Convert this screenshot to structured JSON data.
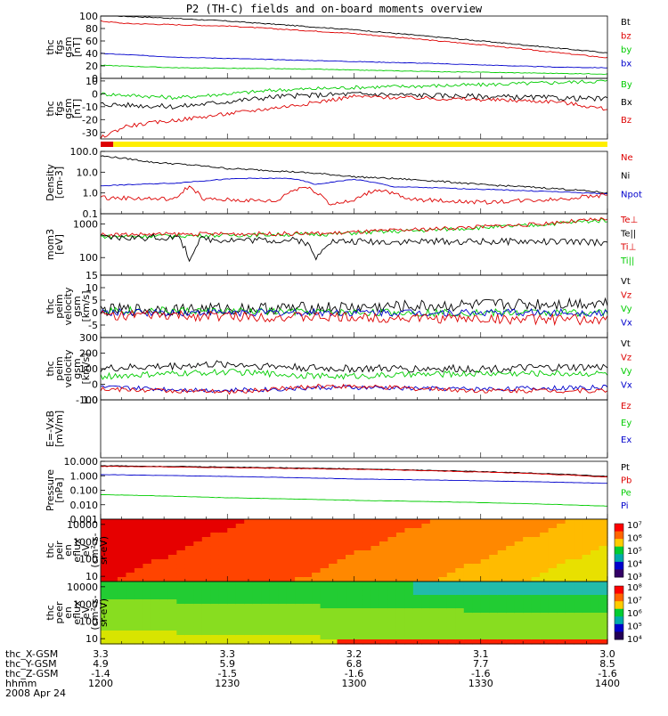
{
  "title": "P2 (TH-C) fields and on-board moments overview",
  "colors": {
    "black": "#000000",
    "red": "#dd0000",
    "green": "#00cc00",
    "blue": "#0000cc",
    "yellow": "#ffee00"
  },
  "quality_bar": {
    "red_until_time": "12:03",
    "red_color": "#dd0000",
    "yellow_color": "#ffee00"
  },
  "time_range": {
    "start": "12:00",
    "end": "14:00"
  },
  "footer": {
    "row_labels": [
      "thc_X-GSM",
      "thc_Y-GSM",
      "thc_Z-GSM",
      "hhmm",
      "2008 Apr 24"
    ],
    "columns": [
      {
        "x": "3.3",
        "y": "4.9",
        "z": "-1.4",
        "hhmm": "1200"
      },
      {
        "x": "3.3",
        "y": "5.9",
        "z": "-1.5",
        "hhmm": "1230"
      },
      {
        "x": "3.2",
        "y": "6.8",
        "z": "-1.6",
        "hhmm": "1300"
      },
      {
        "x": "3.1",
        "y": "7.7",
        "z": "-1.6",
        "hhmm": "1330"
      },
      {
        "x": "3.0",
        "y": "8.5",
        "z": "-1.6",
        "hhmm": "1400"
      }
    ]
  },
  "chart_data": [
    {
      "type": "line",
      "ylabel": [
        "thc",
        "fgs",
        "gsm",
        "[nT]"
      ],
      "ylim": [
        0,
        100
      ],
      "ticks": [
        "100",
        "80",
        "60",
        "40",
        "20",
        "0"
      ],
      "tick_values": [
        100,
        80,
        60,
        40,
        20,
        0
      ],
      "legend": [
        {
          "name": "Bt",
          "color": "#000000"
        },
        {
          "name": "bz",
          "color": "#dd0000"
        },
        {
          "name": "by",
          "color": "#00cc00"
        },
        {
          "name": "bx",
          "color": "#0000cc"
        }
      ],
      "series": [
        {
          "name": "Bt",
          "color": "#000000",
          "noise": 0.8,
          "points": [
            [
              12.0,
              101
            ],
            [
              12.2,
              98
            ],
            [
              12.5,
              92
            ],
            [
              13.0,
              78
            ],
            [
              13.5,
              60
            ],
            [
              14.0,
              41
            ]
          ]
        },
        {
          "name": "bz",
          "color": "#dd0000",
          "noise": 0.8,
          "points": [
            [
              12.0,
              92
            ],
            [
              12.1,
              88
            ],
            [
              12.5,
              84
            ],
            [
              13.0,
              72
            ],
            [
              13.5,
              54
            ],
            [
              14.0,
              33
            ]
          ]
        },
        {
          "name": "bx",
          "color": "#0000cc",
          "noise": 0.5,
          "points": [
            [
              12.0,
              40
            ],
            [
              12.3,
              34
            ],
            [
              12.8,
              29
            ],
            [
              13.3,
              24
            ],
            [
              13.8,
              18
            ],
            [
              14.0,
              17
            ]
          ]
        },
        {
          "name": "by",
          "color": "#00cc00",
          "noise": 0.5,
          "points": [
            [
              12.0,
              21
            ],
            [
              12.3,
              17
            ],
            [
              12.8,
              15
            ],
            [
              13.3,
              11
            ],
            [
              13.8,
              8
            ],
            [
              14.0,
              7
            ]
          ]
        }
      ]
    },
    {
      "type": "line",
      "ylabel": [
        "thc",
        "fgs",
        "gsm",
        "[nT]"
      ],
      "ylim": [
        -35,
        12
      ],
      "ticks": [
        "10",
        "0",
        "-10",
        "-20",
        "-30"
      ],
      "tick_values": [
        10,
        0,
        -10,
        -20,
        -30
      ],
      "legend": [
        {
          "name": "By",
          "color": "#00cc00"
        },
        {
          "name": "Bx",
          "color": "#000000"
        },
        {
          "name": "Bz",
          "color": "#dd0000"
        }
      ],
      "series": [
        {
          "name": "By",
          "color": "#00cc00",
          "noise": 1.5,
          "points": [
            [
              12.0,
              0
            ],
            [
              12.3,
              -3
            ],
            [
              12.7,
              3
            ],
            [
              13.0,
              5
            ],
            [
              13.5,
              7
            ],
            [
              14.0,
              10
            ]
          ]
        },
        {
          "name": "Bx",
          "color": "#000000",
          "noise": 2.0,
          "points": [
            [
              12.0,
              -8
            ],
            [
              12.3,
              -10
            ],
            [
              12.7,
              -2
            ],
            [
              13.0,
              0
            ],
            [
              13.5,
              -2
            ],
            [
              14.0,
              -4
            ]
          ]
        },
        {
          "name": "Bz",
          "color": "#dd0000",
          "noise": 1.5,
          "points": [
            [
              12.0,
              -34
            ],
            [
              12.1,
              -25
            ],
            [
              12.4,
              -18
            ],
            [
              12.8,
              -8
            ],
            [
              13.0,
              -2
            ],
            [
              13.4,
              -4
            ],
            [
              13.8,
              -6
            ],
            [
              14.0,
              -12
            ]
          ]
        }
      ]
    },
    {
      "type": "line",
      "scale": "log",
      "ylabel": [
        "Density",
        "[cm-3]"
      ],
      "ylim": [
        0.1,
        100
      ],
      "ticks": [
        "100.0",
        "10.0",
        "1.0",
        "0.1"
      ],
      "tick_values": [
        100,
        10,
        1,
        0.1
      ],
      "legend": [
        {
          "name": "Ne",
          "color": "#dd0000"
        },
        {
          "name": "Ni",
          "color": "#000000"
        },
        {
          "name": "Npot",
          "color": "#0000cc"
        }
      ],
      "series": [
        {
          "name": "Ni",
          "color": "#000000",
          "noise": 0.02,
          "points": [
            [
              12.0,
              60
            ],
            [
              12.2,
              30
            ],
            [
              12.5,
              15
            ],
            [
              13.0,
              6
            ],
            [
              13.5,
              2.5
            ],
            [
              14.0,
              1.0
            ]
          ]
        },
        {
          "name": "Npot",
          "color": "#0000cc",
          "noise": 0.01,
          "points": [
            [
              12.0,
              2.2
            ],
            [
              12.3,
              3
            ],
            [
              12.55,
              5
            ],
            [
              12.75,
              5
            ],
            [
              12.85,
              2.5
            ],
            [
              13.0,
              4.5
            ],
            [
              13.15,
              2
            ],
            [
              13.5,
              1.5
            ],
            [
              14.0,
              0.9
            ]
          ]
        },
        {
          "name": "Ne",
          "color": "#dd0000",
          "noise": 0.05,
          "points": [
            [
              12.0,
              0.6
            ],
            [
              12.3,
              0.5
            ],
            [
              12.35,
              2
            ],
            [
              12.4,
              0.5
            ],
            [
              12.7,
              0.4
            ],
            [
              12.8,
              2
            ],
            [
              12.9,
              0.3
            ],
            [
              13.0,
              0.4
            ],
            [
              13.1,
              1.5
            ],
            [
              13.2,
              0.5
            ],
            [
              13.5,
              0.35
            ],
            [
              13.8,
              0.5
            ],
            [
              14.0,
              0.8
            ]
          ]
        }
      ]
    },
    {
      "type": "line",
      "scale": "log",
      "ylabel": [
        "mom3",
        "[eV]"
      ],
      "ylim": [
        30,
        2000
      ],
      "ticks": [
        "1000",
        "100"
      ],
      "tick_values": [
        1000,
        100
      ],
      "legend": [
        {
          "name": "Te⊥",
          "color": "#dd0000"
        },
        {
          "name": "Te||",
          "color": "#000000"
        },
        {
          "name": "Ti⊥",
          "color": "#dd0000"
        },
        {
          "name": "Ti||",
          "color": "#00cc00"
        }
      ],
      "series": [
        {
          "name": "Ti||",
          "color": "#00cc00",
          "noise": 0.03,
          "points": [
            [
              12.0,
              420
            ],
            [
              12.4,
              450
            ],
            [
              12.9,
              500
            ],
            [
              13.3,
              650
            ],
            [
              13.7,
              900
            ],
            [
              14.0,
              1300
            ]
          ]
        },
        {
          "name": "Ti⊥",
          "color": "#dd0000",
          "noise": 0.03,
          "points": [
            [
              12.0,
              480
            ],
            [
              12.4,
              500
            ],
            [
              12.9,
              520
            ],
            [
              13.3,
              700
            ],
            [
              13.7,
              950
            ],
            [
              14.0,
              1400
            ]
          ]
        },
        {
          "name": "Te||",
          "color": "#000000",
          "noise": 0.05,
          "points": [
            [
              12.0,
              380
            ],
            [
              12.3,
              400
            ],
            [
              12.35,
              80
            ],
            [
              12.4,
              350
            ],
            [
              12.8,
              320
            ],
            [
              12.85,
              80
            ],
            [
              12.9,
              300
            ],
            [
              13.3,
              300
            ],
            [
              13.7,
              300
            ],
            [
              14.0,
              280
            ]
          ]
        }
      ]
    },
    {
      "type": "line",
      "ylabel": [
        "thc",
        "peim",
        "velocity",
        "gsm",
        "[km/s]"
      ],
      "ylim": [
        -10,
        15
      ],
      "ticks": [
        "15",
        "10",
        "5",
        "0",
        "-5"
      ],
      "tick_values": [
        15,
        10,
        5,
        0,
        -5
      ],
      "legend": [
        {
          "name": "Vt",
          "color": "#000000"
        },
        {
          "name": "Vz",
          "color": "#dd0000"
        },
        {
          "name": "Vy",
          "color": "#00cc00"
        },
        {
          "name": "Vx",
          "color": "#0000cc"
        }
      ],
      "series": [
        {
          "name": "Vt",
          "color": "#000000",
          "noise": 2.5,
          "points": [
            [
              12.0,
              1
            ],
            [
              13.0,
              2
            ],
            [
              14.0,
              4
            ]
          ]
        },
        {
          "name": "Vy",
          "color": "#00cc00",
          "noise": 1.5,
          "points": [
            [
              12.0,
              1
            ],
            [
              13.0,
              0
            ],
            [
              14.0,
              0
            ]
          ]
        },
        {
          "name": "Vx",
          "color": "#0000cc",
          "noise": 1.5,
          "points": [
            [
              12.0,
              0
            ],
            [
              13.0,
              0
            ],
            [
              14.0,
              0
            ]
          ]
        },
        {
          "name": "Vz",
          "color": "#dd0000",
          "noise": 2.0,
          "points": [
            [
              12.0,
              -1
            ],
            [
              13.0,
              -2
            ],
            [
              14.0,
              -3
            ]
          ]
        }
      ]
    },
    {
      "type": "line",
      "ylabel": [
        "thc",
        "peim",
        "velocity",
        "gsm",
        "[km/s]"
      ],
      "ylim": [
        -100,
        300
      ],
      "ticks": [
        "300",
        "200",
        "100",
        "0",
        "-100"
      ],
      "tick_values": [
        300,
        200,
        100,
        0,
        -100
      ],
      "legend": [
        {
          "name": "Vt",
          "color": "#000000"
        },
        {
          "name": "Vz",
          "color": "#dd0000"
        },
        {
          "name": "Vy",
          "color": "#00cc00"
        },
        {
          "name": "Vx",
          "color": "#0000cc"
        }
      ],
      "series": [
        {
          "name": "Vt",
          "color": "#000000",
          "noise": 25,
          "points": [
            [
              12.0,
              100
            ],
            [
              12.5,
              130
            ],
            [
              12.9,
              100
            ],
            [
              13.5,
              100
            ],
            [
              14.0,
              110
            ]
          ]
        },
        {
          "name": "Vy",
          "color": "#00cc00",
          "noise": 20,
          "points": [
            [
              12.0,
              50
            ],
            [
              12.5,
              80
            ],
            [
              12.9,
              50
            ],
            [
              13.5,
              70
            ],
            [
              14.0,
              70
            ]
          ]
        },
        {
          "name": "Vx",
          "color": "#0000cc",
          "noise": 15,
          "points": [
            [
              12.0,
              -20
            ],
            [
              12.5,
              -40
            ],
            [
              12.9,
              -20
            ],
            [
              13.5,
              -30
            ],
            [
              14.0,
              -20
            ]
          ]
        },
        {
          "name": "Vz",
          "color": "#dd0000",
          "noise": 15,
          "points": [
            [
              12.0,
              -30
            ],
            [
              12.5,
              -50
            ],
            [
              12.9,
              -10
            ],
            [
              13.5,
              -40
            ],
            [
              14.0,
              -40
            ]
          ]
        }
      ]
    },
    {
      "type": "line",
      "ylabel": [
        "E=-VxB",
        "[mV/m]"
      ],
      "ylim": [
        0,
        1
      ],
      "ticks": [
        "1.0"
      ],
      "tick_values": [
        1.0
      ],
      "legend": [
        {
          "name": "Ez",
          "color": "#dd0000"
        },
        {
          "name": "Ey",
          "color": "#00cc00"
        },
        {
          "name": "Ex",
          "color": "#0000cc"
        }
      ],
      "series": []
    },
    {
      "type": "line",
      "scale": "log",
      "ylabel": [
        "Pressure",
        "[nPa]"
      ],
      "ylim": [
        0.001,
        10
      ],
      "ticks": [
        "10.000",
        "1.000",
        "0.100",
        "0.010",
        "0.001"
      ],
      "tick_values": [
        10,
        1,
        0.1,
        0.01,
        0.001
      ],
      "legend": [
        {
          "name": "Pt",
          "color": "#000000"
        },
        {
          "name": "Pb",
          "color": "#dd0000"
        },
        {
          "name": "Pe",
          "color": "#00cc00"
        },
        {
          "name": "Pi",
          "color": "#0000cc"
        }
      ],
      "series": [
        {
          "name": "Pt",
          "color": "#000000",
          "noise": 0.01,
          "points": [
            [
              12.0,
              5
            ],
            [
              13.0,
              3
            ],
            [
              14.0,
              0.9
            ]
          ]
        },
        {
          "name": "Pb",
          "color": "#dd0000",
          "noise": 0.01,
          "points": [
            [
              12.0,
              4.5
            ],
            [
              13.0,
              2.8
            ],
            [
              14.0,
              0.8
            ]
          ]
        },
        {
          "name": "Pi",
          "color": "#0000cc",
          "noise": 0.005,
          "points": [
            [
              12.0,
              1.2
            ],
            [
              13.0,
              0.6
            ],
            [
              14.0,
              0.3
            ]
          ]
        },
        {
          "name": "Pe",
          "color": "#00cc00",
          "noise": 0.005,
          "points": [
            [
              12.0,
              0.05
            ],
            [
              12.5,
              0.03
            ],
            [
              13.0,
              0.02
            ],
            [
              14.0,
              0.008
            ]
          ]
        }
      ]
    },
    {
      "type": "heatmap",
      "ylabel": [
        "thc",
        "peir",
        "en",
        "eflux",
        "eV",
        "(cm²-s-",
        "sr-eV)"
      ],
      "ylim": [
        5,
        20000
      ],
      "ticks": [
        "10000",
        "1000",
        "100",
        "10"
      ],
      "tick_values": [
        10000,
        1000,
        100,
        10
      ],
      "colorbar": [
        "10⁷",
        "10⁶",
        "10⁵",
        "10⁴",
        "10³"
      ]
    },
    {
      "type": "heatmap",
      "ylabel": [
        "thc",
        "peer",
        "en",
        "eflux",
        "eV",
        "(cm²-s-",
        "sr-eV)"
      ],
      "ylim": [
        5,
        20000
      ],
      "ticks": [
        "10000",
        "1000",
        "100",
        "10"
      ],
      "tick_values": [
        10000,
        1000,
        100,
        10
      ],
      "colorbar": [
        "10⁸",
        "10⁷",
        "10⁶",
        "10⁵",
        "10⁴"
      ]
    }
  ]
}
